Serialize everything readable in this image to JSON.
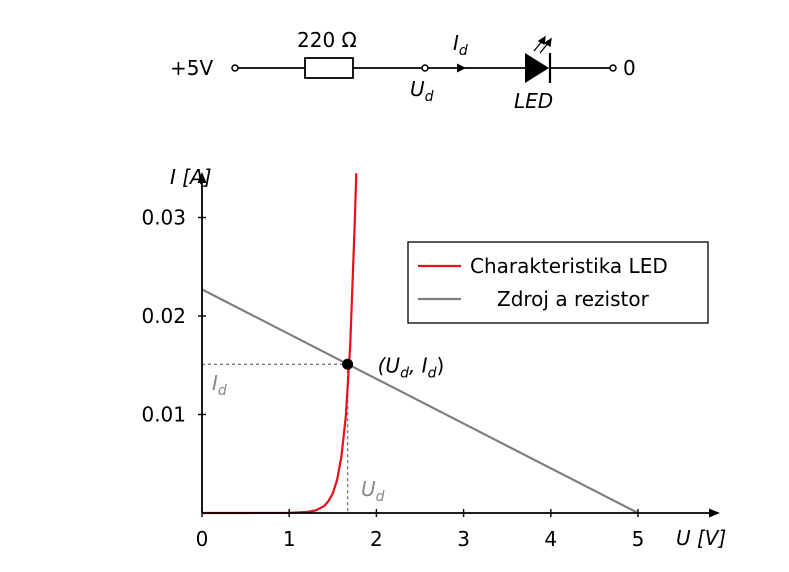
{
  "circuit": {
    "source_label": "+5V",
    "resistor_label": "220 Ω",
    "current_label": "I",
    "current_sub": "d",
    "node_label": "U",
    "node_sub": "d",
    "diode_label": "LED",
    "ground_label": "0"
  },
  "chart_data": {
    "type": "line",
    "xlabel": "U [V]",
    "ylabel": "I [A]",
    "xlim": [
      0,
      5.6
    ],
    "ylim": [
      0,
      0.0345
    ],
    "x_ticks": [
      "0",
      "1",
      "2",
      "3",
      "4",
      "5"
    ],
    "y_ticks": [
      "0.01",
      "0.02",
      "0.03"
    ],
    "legend_position": "right",
    "series": [
      {
        "name": "Charakteristika LED",
        "color": "#e8101a",
        "x": [
          0,
          0.5,
          1.0,
          1.2,
          1.3,
          1.4,
          1.45,
          1.5,
          1.55,
          1.6,
          1.65,
          1.7,
          1.75,
          1.77
        ],
        "y": [
          0,
          0,
          2e-05,
          0.0001,
          0.00025,
          0.0007,
          0.0012,
          0.002,
          0.0034,
          0.0058,
          0.0099,
          0.017,
          0.029,
          0.0345
        ]
      },
      {
        "name": "Zdroj a rezistor",
        "color": "#808080",
        "x": [
          0,
          5
        ],
        "y": [
          0.0227,
          0
        ]
      }
    ],
    "operating_point": {
      "x": 1.67,
      "y": 0.0151,
      "label": "(U",
      "sub1": "d",
      "mid": ", I",
      "sub2": "d",
      "end": ")"
    },
    "annotations": {
      "id_label": "I",
      "id_sub": "d",
      "ud_label": "U",
      "ud_sub": "d"
    }
  }
}
